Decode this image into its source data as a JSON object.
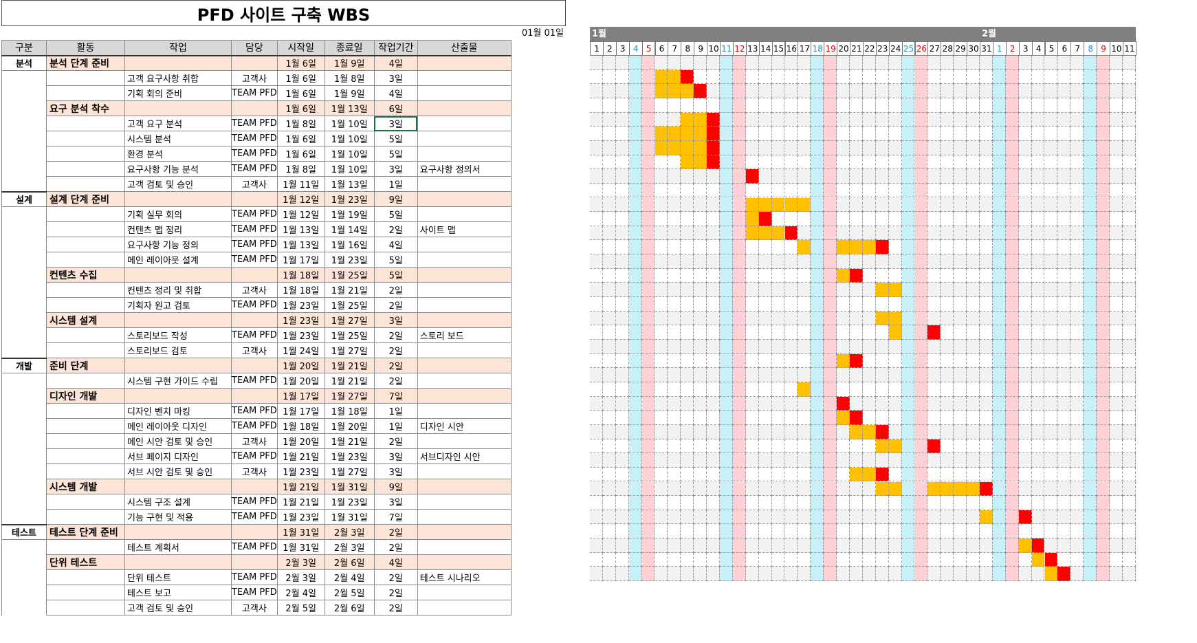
{
  "title": "PFD 사이트 구축 WBS",
  "base_date": "01월 01일",
  "headers": [
    "구분",
    "활동",
    "작업",
    "담당",
    "시작일",
    "종료일",
    "작업기간",
    "산출물"
  ],
  "rows": [
    {
      "type": "act",
      "cat": "분석",
      "name": "분석 단계 준비",
      "start": "1월 6일",
      "end": "1월 9일",
      "dur": "4일",
      "out": ""
    },
    {
      "type": "task",
      "name": "고객 요구사항 취합",
      "owner": "고객사",
      "start": "1월 6일",
      "end": "1월 8일",
      "dur": "3일",
      "out": ""
    },
    {
      "type": "task",
      "name": "기획 회의 준비",
      "owner": "TEAM PFD",
      "start": "1월 6일",
      "end": "1월 9일",
      "dur": "4일",
      "out": ""
    },
    {
      "type": "act",
      "name": "요구 분석 착수",
      "start": "1월 6일",
      "end": "1월 13일",
      "dur": "6일",
      "out": ""
    },
    {
      "type": "task",
      "name": "고객 요구 분석",
      "owner": "TEAM PFD",
      "start": "1월 8일",
      "end": "1월 10일",
      "dur": "3일",
      "out": ""
    },
    {
      "type": "task",
      "name": "시스템 분석",
      "owner": "TEAM PFD",
      "start": "1월 6일",
      "end": "1월 10일",
      "dur": "5일",
      "out": ""
    },
    {
      "type": "task",
      "name": "환경 분석",
      "owner": "TEAM PFD",
      "start": "1월 6일",
      "end": "1월 10일",
      "dur": "5일",
      "out": ""
    },
    {
      "type": "task",
      "name": "요구사항 기능 분석",
      "owner": "TEAM PFD",
      "start": "1월 8일",
      "end": "1월 10일",
      "dur": "3일",
      "out": "요구사항 정의서"
    },
    {
      "type": "task",
      "name": "고객 검토 및 승인",
      "owner": "고객사",
      "start": "1월 11일",
      "end": "1월 13일",
      "dur": "1일",
      "out": ""
    },
    {
      "type": "act",
      "cat": "설계",
      "name": "설계 단계 준비",
      "start": "1월 12일",
      "end": "1월 23일",
      "dur": "9일",
      "out": ""
    },
    {
      "type": "task",
      "name": "기획 실무 회의",
      "owner": "TEAM PFD",
      "start": "1월 12일",
      "end": "1월 19일",
      "dur": "5일",
      "out": ""
    },
    {
      "type": "task",
      "name": "컨텐츠 맵 정리",
      "owner": "TEAM PFD",
      "start": "1월 13일",
      "end": "1월 14일",
      "dur": "2일",
      "out": "사이트 맵"
    },
    {
      "type": "task",
      "name": "요구사항 기능 정의",
      "owner": "TEAM PFD",
      "start": "1월 13일",
      "end": "1월 16일",
      "dur": "4일",
      "out": ""
    },
    {
      "type": "task",
      "name": "메인 레이아웃 설계",
      "owner": "TEAM PFD",
      "start": "1월 17일",
      "end": "1월 23일",
      "dur": "5일",
      "out": ""
    },
    {
      "type": "act",
      "name": "컨텐츠 수집",
      "start": "1월 18일",
      "end": "1월 25일",
      "dur": "5일",
      "out": ""
    },
    {
      "type": "task",
      "name": "컨텐츠 정리 및 취합",
      "owner": "고객사",
      "start": "1월 18일",
      "end": "1월 21일",
      "dur": "2일",
      "out": ""
    },
    {
      "type": "task",
      "name": "기획자 원고 검토",
      "owner": "TEAM PFD",
      "start": "1월 23일",
      "end": "1월 25일",
      "dur": "2일",
      "out": ""
    },
    {
      "type": "act",
      "name": "시스템 설계",
      "start": "1월 23일",
      "end": "1월 27일",
      "dur": "3일",
      "out": ""
    },
    {
      "type": "task",
      "name": "스토리보드 작성",
      "owner": "TEAM PFD",
      "start": "1월 23일",
      "end": "1월 25일",
      "dur": "2일",
      "out": "스토리 보드"
    },
    {
      "type": "task",
      "name": "스토리보드 검토",
      "owner": "고객사",
      "start": "1월 24일",
      "end": "1월 27일",
      "dur": "2일",
      "out": ""
    },
    {
      "type": "act",
      "cat": "개발",
      "name": "준비 단계",
      "start": "1월 20일",
      "end": "1월 21일",
      "dur": "2일",
      "out": ""
    },
    {
      "type": "task",
      "name": "시스템 구현 가이드 수립",
      "owner": "TEAM PFD",
      "start": "1월 20일",
      "end": "1월 21일",
      "dur": "2일",
      "out": ""
    },
    {
      "type": "act",
      "name": "디자인 개발",
      "start": "1월 17일",
      "end": "1월 27일",
      "dur": "7일",
      "out": ""
    },
    {
      "type": "task",
      "name": "디자인 벤치 마킹",
      "owner": "TEAM PFD",
      "start": "1월 17일",
      "end": "1월 18일",
      "dur": "1일",
      "out": ""
    },
    {
      "type": "task",
      "name": "메인 레이아웃 디자인",
      "owner": "TEAM PFD",
      "start": "1월 18일",
      "end": "1월 20일",
      "dur": "1일",
      "out": "디자인 시안"
    },
    {
      "type": "task",
      "name": "메인 시안 검토 및 승인",
      "owner": "고객사",
      "start": "1월 20일",
      "end": "1월 21일",
      "dur": "2일",
      "out": ""
    },
    {
      "type": "task",
      "name": "서브 페이지 디자인",
      "owner": "TEAM PFD",
      "start": "1월 21일",
      "end": "1월 23일",
      "dur": "3일",
      "out": "서브디자인 시안"
    },
    {
      "type": "task",
      "name": "서브 시안 검토 및 승인",
      "owner": "고객사",
      "start": "1월 23일",
      "end": "1월 27일",
      "dur": "3일",
      "out": ""
    },
    {
      "type": "act",
      "name": "시스템 개발",
      "start": "1월 21일",
      "end": "1월 31일",
      "dur": "9일",
      "out": ""
    },
    {
      "type": "task",
      "name": "시스템 구조 설계",
      "owner": "TEAM PFD",
      "start": "1월 21일",
      "end": "1월 23일",
      "dur": "3일",
      "out": ""
    },
    {
      "type": "task",
      "name": "기능 구현 및 적용",
      "owner": "TEAM PFD",
      "start": "1월 23일",
      "end": "1월 31일",
      "dur": "7일",
      "out": ""
    },
    {
      "type": "act",
      "cat": "테스트",
      "name": "테스트 단계 준비",
      "start": "1월 31일",
      "end": "2월 3일",
      "dur": "2일",
      "out": ""
    },
    {
      "type": "task",
      "name": "테스트 계획서",
      "owner": "TEAM PFD",
      "start": "1월 31일",
      "end": "2월 3일",
      "dur": "2일",
      "out": ""
    },
    {
      "type": "act",
      "name": "단위 테스트",
      "start": "2월 3일",
      "end": "2월 6일",
      "dur": "4일",
      "out": ""
    },
    {
      "type": "task",
      "name": "단위 테스트",
      "owner": "TEAM PFD",
      "start": "2월 3일",
      "end": "2월 4일",
      "dur": "2일",
      "out": "테스트 시나리오"
    },
    {
      "type": "task",
      "name": "테스트 보고",
      "owner": "TEAM PFD",
      "start": "2월 4일",
      "end": "2월 5일",
      "dur": "2일",
      "out": ""
    },
    {
      "type": "task",
      "name": "고객 검토 및 승인",
      "owner": "고객사",
      "start": "2월 5일",
      "end": "2월 6일",
      "dur": "2일",
      "out": ""
    }
  ],
  "gantt": {
    "months": [
      {
        "label": "1월",
        "start_index": 0
      },
      {
        "label": "2월",
        "start_index": 30
      }
    ],
    "days": [
      "1",
      "2",
      "3",
      "4",
      "5",
      "6",
      "7",
      "8",
      "9",
      "10",
      "11",
      "12",
      "13",
      "14",
      "15",
      "16",
      "17",
      "18",
      "19",
      "20",
      "21",
      "22",
      "23",
      "24",
      "25",
      "26",
      "27",
      "28",
      "29",
      "30",
      "31",
      "1",
      "2",
      "3",
      "4",
      "5",
      "6",
      "7",
      "8",
      "9",
      "10",
      "11"
    ],
    "red_days": [
      4,
      11,
      18,
      25,
      32,
      39
    ],
    "blue_days": [
      3,
      10,
      17,
      24,
      31,
      38
    ],
    "colors": {
      "work": "#ffc000",
      "end": "#ff0000",
      "sun_col": "#ffd0d6",
      "sat_col": "#c8f0f8",
      "weekday_alt": "#f2f2f2"
    },
    "bars": [
      {
        "row": 1,
        "work": [
          5,
          6,
          7
        ],
        "end": [
          7
        ]
      },
      {
        "row": 2,
        "work": [
          5,
          6,
          7,
          8
        ],
        "end": [
          8
        ]
      },
      {
        "row": 4,
        "work": [
          7,
          8,
          9
        ],
        "end": [
          9
        ]
      },
      {
        "row": 5,
        "work": [
          5,
          6,
          7,
          8,
          9
        ],
        "end": [
          9
        ]
      },
      {
        "row": 6,
        "work": [
          5,
          6,
          7,
          8,
          9
        ],
        "end": [
          9
        ]
      },
      {
        "row": 7,
        "work": [
          7,
          8,
          9
        ],
        "end": [
          9
        ]
      },
      {
        "row": 8,
        "work": [
          12
        ],
        "end": [
          12
        ]
      },
      {
        "row": 10,
        "work": [
          12,
          13,
          14,
          15,
          16
        ],
        "end": []
      },
      {
        "row": 11,
        "work": [
          12,
          13
        ],
        "end": [
          13
        ]
      },
      {
        "row": 12,
        "work": [
          12,
          13,
          14,
          15
        ],
        "end": [
          15
        ]
      },
      {
        "row": 13,
        "work": [
          16,
          19,
          20,
          21,
          22
        ],
        "end": [
          22
        ]
      },
      {
        "row": 15,
        "work": [
          19,
          20
        ],
        "end": [
          20
        ]
      },
      {
        "row": 16,
        "work": [
          22,
          23
        ],
        "end": []
      },
      {
        "row": 18,
        "work": [
          22,
          23
        ],
        "end": []
      },
      {
        "row": 19,
        "work": [
          23,
          26
        ],
        "end": [
          26
        ]
      },
      {
        "row": 21,
        "work": [
          19,
          20
        ],
        "end": [
          20
        ]
      },
      {
        "row": 23,
        "work": [
          16
        ],
        "end": []
      },
      {
        "row": 24,
        "work": [
          19
        ],
        "end": [
          19
        ]
      },
      {
        "row": 25,
        "work": [
          19,
          20
        ],
        "end": [
          20
        ]
      },
      {
        "row": 26,
        "work": [
          20,
          21,
          22
        ],
        "end": [
          22
        ]
      },
      {
        "row": 27,
        "work": [
          22,
          23,
          26
        ],
        "end": [
          26
        ]
      },
      {
        "row": 29,
        "work": [
          20,
          21,
          22
        ],
        "end": [
          22
        ]
      },
      {
        "row": 30,
        "work": [
          22,
          23,
          26,
          27,
          28,
          29,
          30
        ],
        "end": [
          30
        ]
      },
      {
        "row": 32,
        "work": [
          30,
          33
        ],
        "end": [
          33
        ]
      },
      {
        "row": 34,
        "work": [
          33,
          34
        ],
        "end": [
          34
        ]
      },
      {
        "row": 35,
        "work": [
          34,
          35
        ],
        "end": [
          35
        ]
      },
      {
        "row": 36,
        "work": [
          35,
          36
        ],
        "end": [
          36
        ]
      }
    ]
  }
}
